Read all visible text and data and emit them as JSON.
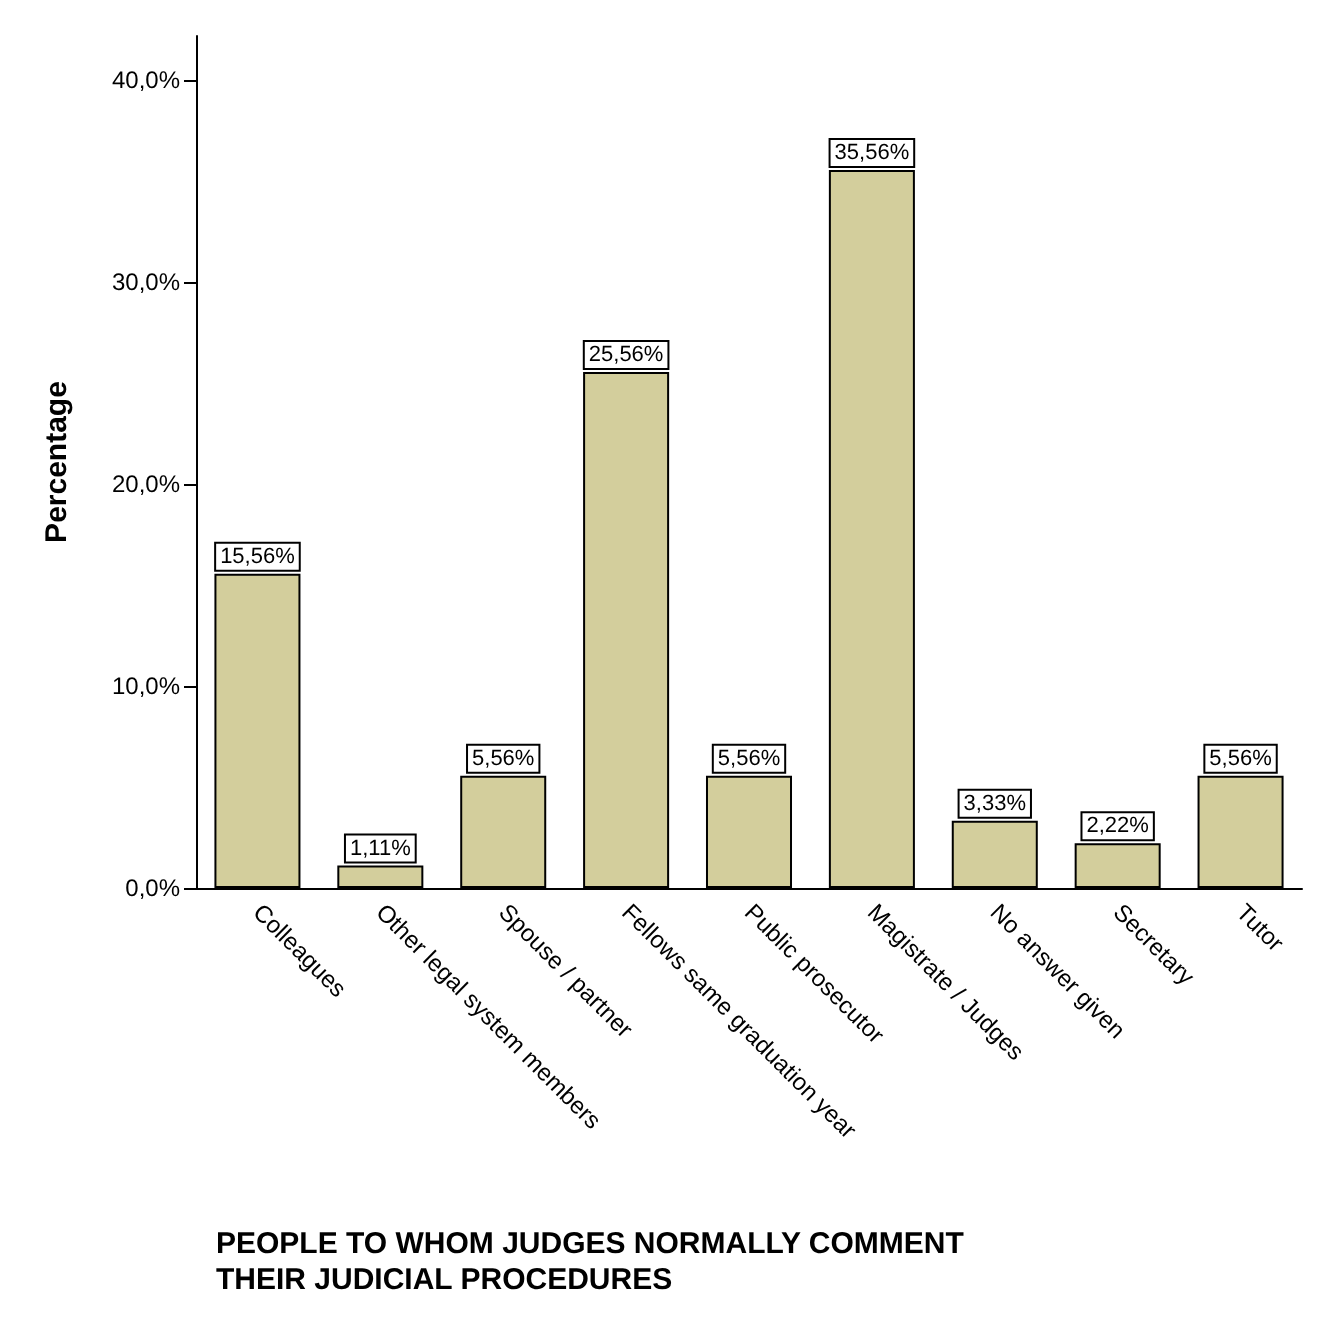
{
  "chart_data": {
    "type": "bar",
    "xlabel": "PEOPLE TO WHOM JUDGES NORMALLY COMMENT THEIR JUDICIAL PROCEDURES",
    "ylabel": "Percentage",
    "categories": [
      "Colleagues",
      "Other legal system members",
      "Spouse / partner",
      "Fellows same graduation year",
      "Public prosecutor",
      "Magistrate / Judges",
      "No answer given",
      "Secretary",
      "Tutor"
    ],
    "values": [
      15.56,
      1.11,
      5.56,
      25.56,
      5.56,
      35.56,
      3.33,
      2.22,
      5.56
    ],
    "value_labels": [
      "15,56%",
      "1,11%",
      "5,56%",
      "25,56%",
      "5,56%",
      "35,56%",
      "3,33%",
      "2,22%",
      "5,56%"
    ],
    "color": "#d3ce9c",
    "ylim": [
      0,
      42.2
    ],
    "yticks": [
      {
        "value": 0,
        "label": "0,0%"
      },
      {
        "value": 10,
        "label": "10,0%"
      },
      {
        "value": 20,
        "label": "20,0%"
      },
      {
        "value": 30,
        "label": "30,0%"
      },
      {
        "value": 40,
        "label": "40,0%"
      }
    ],
    "grid": false
  }
}
